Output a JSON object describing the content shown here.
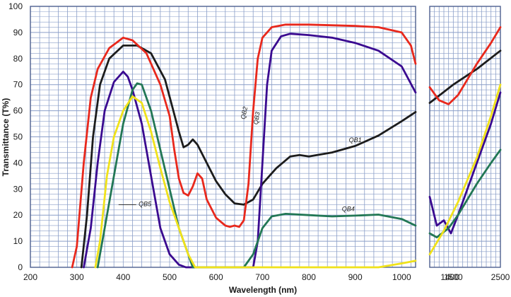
{
  "chart_data": {
    "type": "line",
    "title": "",
    "xlabel": "Wavelength (nm)",
    "ylabel": "Transmittance (T%)",
    "ylim": [
      0,
      100
    ],
    "y_ticks": [
      "0",
      "10",
      "20",
      "30",
      "40",
      "50",
      "60",
      "70",
      "80",
      "90",
      "100"
    ],
    "panels": [
      {
        "xlim": [
          200,
          1030
        ],
        "x_ticks": [
          [
            "200",
            200
          ],
          [
            "300",
            300
          ],
          [
            "400",
            400
          ],
          [
            "500",
            500
          ],
          [
            "600",
            600
          ],
          [
            "700",
            700
          ],
          [
            "800",
            800
          ],
          [
            "900",
            900
          ],
          [
            "1000",
            1000
          ]
        ]
      },
      {
        "xlim": [
          1000,
          2500
        ],
        "x_ticks": [
          [
            "1500",
            1500
          ],
          [
            "2500",
            2500
          ]
        ]
      }
    ],
    "extra_ticks": [
      [
        "1400",
        1430
      ]
    ],
    "grid": true,
    "legend": "inline labels on curves",
    "series": [
      {
        "name": "QB1",
        "color": "#1c1c1c",
        "label_at": [
          900,
          48,
          0
        ],
        "left": [
          [
            310,
            0
          ],
          [
            322,
            20
          ],
          [
            335,
            50
          ],
          [
            350,
            70
          ],
          [
            370,
            80
          ],
          [
            400,
            85
          ],
          [
            430,
            85
          ],
          [
            460,
            82
          ],
          [
            490,
            72
          ],
          [
            505,
            62
          ],
          [
            520,
            52
          ],
          [
            530,
            46
          ],
          [
            540,
            47
          ],
          [
            550,
            49
          ],
          [
            560,
            47
          ],
          [
            580,
            40
          ],
          [
            600,
            33
          ],
          [
            620,
            28
          ],
          [
            640,
            24.5
          ],
          [
            660,
            24
          ],
          [
            680,
            26
          ],
          [
            700,
            32
          ],
          [
            730,
            38
          ],
          [
            760,
            42.5
          ],
          [
            780,
            43
          ],
          [
            800,
            42.5
          ],
          [
            850,
            44
          ],
          [
            900,
            46.5
          ],
          [
            950,
            50.5
          ],
          [
            1000,
            56
          ],
          [
            1030,
            59.5
          ]
        ],
        "right": [
          [
            1000,
            63
          ],
          [
            1500,
            70
          ],
          [
            2000,
            76
          ],
          [
            2500,
            83
          ]
        ]
      },
      {
        "name": "QB2",
        "color": "#e8281c",
        "label_at": [
          665,
          59,
          -78
        ],
        "left": [
          [
            290,
            0
          ],
          [
            300,
            8
          ],
          [
            315,
            40
          ],
          [
            330,
            65
          ],
          [
            345,
            76
          ],
          [
            370,
            84
          ],
          [
            400,
            88
          ],
          [
            420,
            87
          ],
          [
            450,
            82
          ],
          [
            480,
            70
          ],
          [
            500,
            58
          ],
          [
            510,
            45
          ],
          [
            520,
            34
          ],
          [
            530,
            28.5
          ],
          [
            540,
            27.5
          ],
          [
            550,
            31
          ],
          [
            560,
            36
          ],
          [
            570,
            34
          ],
          [
            580,
            26
          ],
          [
            600,
            19
          ],
          [
            620,
            16
          ],
          [
            630,
            15.5
          ],
          [
            640,
            16
          ],
          [
            650,
            15.5
          ],
          [
            660,
            18
          ],
          [
            670,
            32
          ],
          [
            680,
            60
          ],
          [
            690,
            80
          ],
          [
            700,
            88
          ],
          [
            720,
            92
          ],
          [
            750,
            93
          ],
          [
            800,
            93
          ],
          [
            900,
            92.5
          ],
          [
            950,
            92
          ],
          [
            1000,
            90
          ],
          [
            1020,
            85
          ],
          [
            1030,
            78
          ]
        ],
        "right": [
          [
            1000,
            69
          ],
          [
            1200,
            64
          ],
          [
            1400,
            62.5
          ],
          [
            1600,
            66
          ],
          [
            2000,
            78
          ],
          [
            2300,
            86
          ],
          [
            2500,
            92
          ]
        ]
      },
      {
        "name": "QB3",
        "color": "#3a0a90",
        "label_at": [
          692,
          57,
          -80
        ],
        "left": [
          [
            315,
            0
          ],
          [
            330,
            15
          ],
          [
            345,
            40
          ],
          [
            360,
            60
          ],
          [
            380,
            71
          ],
          [
            400,
            75
          ],
          [
            410,
            73
          ],
          [
            420,
            68
          ],
          [
            440,
            55
          ],
          [
            460,
            35
          ],
          [
            480,
            15
          ],
          [
            500,
            5
          ],
          [
            520,
            1
          ],
          [
            535,
            0
          ],
          [
            680,
            0
          ],
          [
            690,
            10
          ],
          [
            700,
            40
          ],
          [
            710,
            70
          ],
          [
            720,
            83
          ],
          [
            740,
            88.5
          ],
          [
            760,
            89.5
          ],
          [
            800,
            89
          ],
          [
            850,
            88
          ],
          [
            900,
            86
          ],
          [
            950,
            83
          ],
          [
            1000,
            77
          ],
          [
            1030,
            67
          ]
        ],
        "right": [
          [
            1000,
            27
          ],
          [
            1150,
            16
          ],
          [
            1300,
            18
          ],
          [
            1450,
            13
          ],
          [
            1600,
            20
          ],
          [
            2000,
            40
          ],
          [
            2300,
            55
          ],
          [
            2500,
            67
          ]
        ]
      },
      {
        "name": "QB4",
        "color": "#227755",
        "label_at": [
          885,
          21.5,
          0
        ],
        "left": [
          [
            345,
            0
          ],
          [
            360,
            15
          ],
          [
            380,
            35
          ],
          [
            400,
            55
          ],
          [
            420,
            68
          ],
          [
            430,
            70.5
          ],
          [
            440,
            70
          ],
          [
            460,
            60
          ],
          [
            480,
            45
          ],
          [
            500,
            30
          ],
          [
            520,
            15
          ],
          [
            540,
            5
          ],
          [
            550,
            0
          ],
          [
            660,
            0
          ],
          [
            680,
            5
          ],
          [
            700,
            15
          ],
          [
            720,
            19.5
          ],
          [
            750,
            20.5
          ],
          [
            800,
            20
          ],
          [
            850,
            19.5
          ],
          [
            900,
            19.8
          ],
          [
            950,
            20.2
          ],
          [
            1000,
            18.5
          ],
          [
            1030,
            16
          ]
        ],
        "right": [
          [
            1000,
            13
          ],
          [
            1150,
            11.5
          ],
          [
            1400,
            15
          ],
          [
            1600,
            20
          ],
          [
            2000,
            32
          ],
          [
            2300,
            40
          ],
          [
            2500,
            45
          ]
        ]
      },
      {
        "name": "QB5",
        "color": "#f0e21a",
        "label_at": [
          447,
          23.5,
          0
        ],
        "left": [
          [
            340,
            0
          ],
          [
            350,
            10
          ],
          [
            365,
            35
          ],
          [
            380,
            50
          ],
          [
            400,
            60
          ],
          [
            420,
            65.5
          ],
          [
            440,
            63
          ],
          [
            460,
            52
          ],
          [
            480,
            38
          ],
          [
            500,
            25
          ],
          [
            520,
            15
          ],
          [
            540,
            5
          ],
          [
            555,
            0
          ],
          [
            950,
            0
          ],
          [
            1000,
            1.5
          ],
          [
            1030,
            2.5
          ]
        ],
        "right": [
          [
            1000,
            5
          ],
          [
            1300,
            14
          ],
          [
            1600,
            25
          ],
          [
            2000,
            42
          ],
          [
            2300,
            58
          ],
          [
            2500,
            70
          ]
        ]
      }
    ]
  }
}
